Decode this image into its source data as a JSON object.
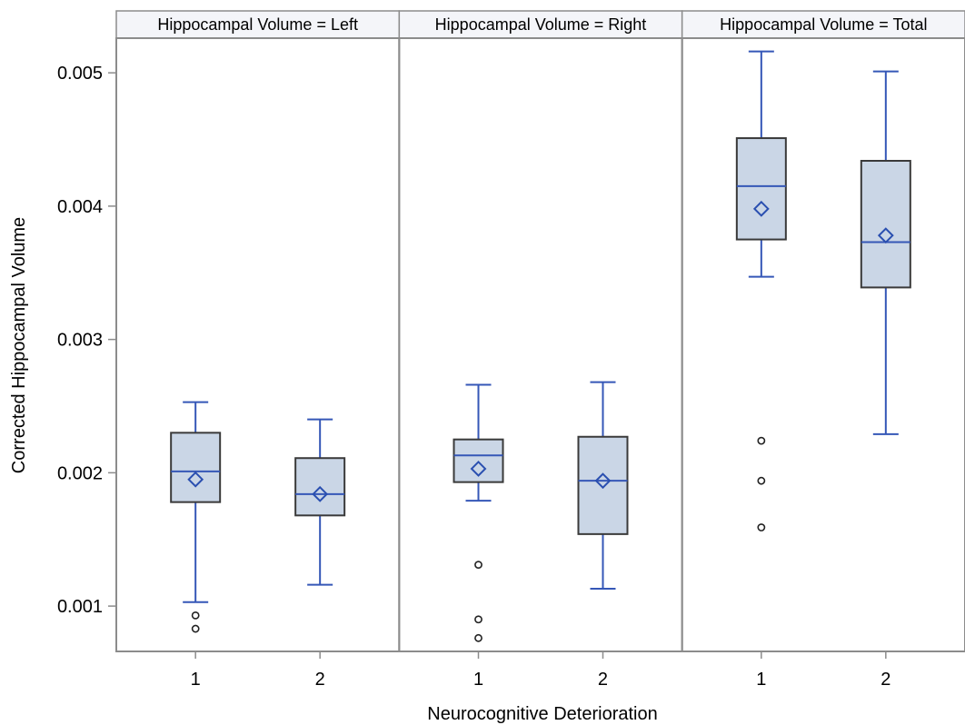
{
  "chart_data": {
    "type": "box",
    "ylabel": "Corrected Hippocampal Volume",
    "xlabel": "Neurocognitive Deterioration",
    "ylim": [
      0.00066,
      0.00526
    ],
    "yticks": [
      {
        "value": 0.001,
        "label": "0.001"
      },
      {
        "value": 0.002,
        "label": "0.002"
      },
      {
        "value": 0.003,
        "label": "0.003"
      },
      {
        "value": 0.004,
        "label": "0.004"
      },
      {
        "value": 0.005,
        "label": "0.005"
      }
    ],
    "categories": [
      "1",
      "2"
    ],
    "grid": false,
    "colors": {
      "box_fill": "#cad6e6",
      "box_stroke": "#3a3a3a",
      "whisker": "#3557b7",
      "mean_marker": "#2a4fb0",
      "outlier": "#222222",
      "panel_border": "#8c8c8c",
      "header_fill": "#f4f5f9"
    },
    "panels": [
      {
        "title": "Hippocampal Volume = Left",
        "groups": [
          {
            "category": "1",
            "whisker_low": 0.00103,
            "q1": 0.00178,
            "median": 0.00201,
            "q3": 0.0023,
            "whisker_high": 0.00253,
            "mean": 0.00195,
            "outliers": [
              0.00093,
              0.00083
            ]
          },
          {
            "category": "2",
            "whisker_low": 0.00116,
            "q1": 0.00168,
            "median": 0.00184,
            "q3": 0.00211,
            "whisker_high": 0.0024,
            "mean": 0.00184,
            "outliers": []
          }
        ]
      },
      {
        "title": "Hippocampal Volume = Right",
        "groups": [
          {
            "category": "1",
            "whisker_low": 0.00179,
            "q1": 0.00193,
            "median": 0.00213,
            "q3": 0.00225,
            "whisker_high": 0.00266,
            "mean": 0.00203,
            "outliers": [
              0.00131,
              0.0009,
              0.00076
            ]
          },
          {
            "category": "2",
            "whisker_low": 0.00113,
            "q1": 0.00154,
            "median": 0.00194,
            "q3": 0.00227,
            "whisker_high": 0.00268,
            "mean": 0.00194,
            "outliers": []
          }
        ]
      },
      {
        "title": "Hippocampal Volume = Total",
        "groups": [
          {
            "category": "1",
            "whisker_low": 0.00347,
            "q1": 0.00375,
            "median": 0.00415,
            "q3": 0.00451,
            "whisker_high": 0.00516,
            "mean": 0.00398,
            "outliers": [
              0.00224,
              0.00194,
              0.00159
            ]
          },
          {
            "category": "2",
            "whisker_low": 0.00229,
            "q1": 0.00339,
            "median": 0.00373,
            "q3": 0.00434,
            "whisker_high": 0.00501,
            "mean": 0.00378,
            "outliers": []
          }
        ]
      }
    ]
  }
}
